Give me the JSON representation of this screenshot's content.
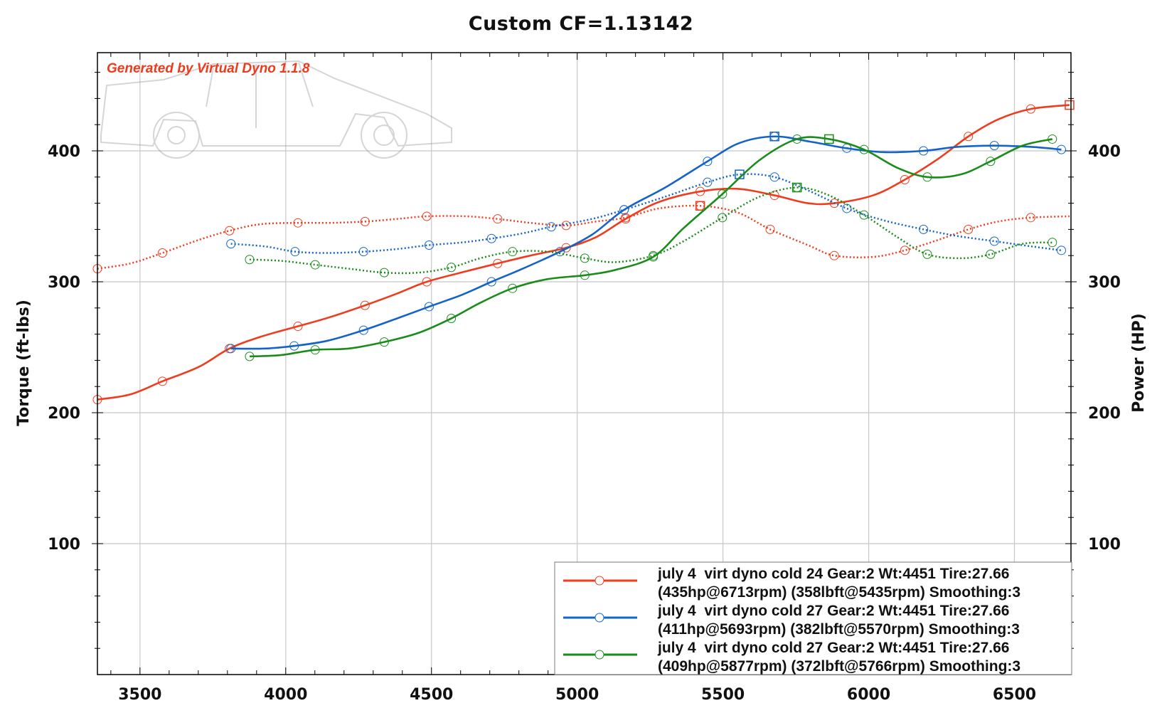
{
  "chart_data": {
    "type": "line",
    "title": "Custom CF=1.13142",
    "watermark": "Generated by Virtual Dyno 1.1.8",
    "xlabel": "",
    "ylabel": "Torque (ft-lbs)",
    "y2label": "Power (HP)",
    "xlim": [
      3354,
      6694
    ],
    "ylim": [
      0,
      475
    ],
    "xticks": [
      "3500",
      "4000",
      "4500",
      "5000",
      "5500",
      "6000",
      "6500"
    ],
    "yticks": [
      "100",
      "200",
      "300",
      "400"
    ],
    "grid": true,
    "legend_position": "bottom-right",
    "series": [
      {
        "name": "july 4  virt dyno cold 24 Gear:2 Wt:4451 Tire:27.66",
        "summary": "(435hp@6713rpm) (358lbft@5435rpm) Smoothing:3",
        "color": "#f03c1e",
        "power": [
          [
            3354,
            210
          ],
          [
            3467,
            214
          ],
          [
            3577,
            224
          ],
          [
            3702,
            235
          ],
          [
            3807,
            249
          ],
          [
            3914,
            258
          ],
          [
            4042,
            266
          ],
          [
            4152,
            273
          ],
          [
            4272,
            282
          ],
          [
            4382,
            291
          ],
          [
            4484,
            300
          ],
          [
            4619,
            308
          ],
          [
            4727,
            314
          ],
          [
            4839,
            320
          ],
          [
            4962,
            326
          ],
          [
            5064,
            334
          ],
          [
            5166,
            348
          ],
          [
            5281,
            361
          ],
          [
            5422,
            369
          ],
          [
            5549,
            371
          ],
          [
            5677,
            366
          ],
          [
            5792,
            360
          ],
          [
            5882,
            360
          ],
          [
            6015,
            366
          ],
          [
            6124,
            378
          ],
          [
            6239,
            394
          ],
          [
            6342,
            411
          ],
          [
            6444,
            424
          ],
          [
            6556,
            432
          ],
          [
            6689,
            435
          ]
        ],
        "torque": [
          [
            3354,
            310
          ],
          [
            3467,
            314
          ],
          [
            3577,
            322
          ],
          [
            3702,
            332
          ],
          [
            3807,
            339
          ],
          [
            3914,
            344
          ],
          [
            4042,
            345
          ],
          [
            4152,
            345
          ],
          [
            4272,
            346
          ],
          [
            4382,
            348
          ],
          [
            4484,
            350
          ],
          [
            4619,
            350
          ],
          [
            4727,
            348
          ],
          [
            4839,
            345
          ],
          [
            4962,
            343
          ],
          [
            5064,
            346
          ],
          [
            5166,
            349
          ],
          [
            5281,
            356
          ],
          [
            5422,
            358
          ],
          [
            5549,
            353
          ],
          [
            5662,
            340
          ],
          [
            5792,
            328
          ],
          [
            5882,
            320
          ],
          [
            6015,
            319
          ],
          [
            6124,
            324
          ],
          [
            6239,
            332
          ],
          [
            6342,
            340
          ],
          [
            6444,
            346
          ],
          [
            6556,
            349
          ],
          [
            6689,
            350
          ]
        ],
        "peak_power": [
          6689,
          435
        ],
        "peak_torque": [
          5422,
          358
        ]
      },
      {
        "name": "july 4  virt dyno cold 27 Gear:2 Wt:4451 Tire:27.66",
        "summary": "(411hp@5693rpm) (382lbft@5570rpm) Smoothing:3",
        "color": "#1464c8",
        "power": [
          [
            3812,
            249
          ],
          [
            3927,
            249
          ],
          [
            4029,
            251
          ],
          [
            4144,
            255
          ],
          [
            4267,
            263
          ],
          [
            4382,
            272
          ],
          [
            4492,
            281
          ],
          [
            4604,
            290
          ],
          [
            4706,
            300
          ],
          [
            4813,
            310
          ],
          [
            4941,
            323
          ],
          [
            5051,
            336
          ],
          [
            5161,
            355
          ],
          [
            5302,
            372
          ],
          [
            5447,
            392
          ],
          [
            5557,
            406
          ],
          [
            5677,
            411
          ],
          [
            5800,
            407
          ],
          [
            5925,
            402
          ],
          [
            6050,
            399
          ],
          [
            6188,
            400
          ],
          [
            6303,
            403
          ],
          [
            6431,
            404
          ],
          [
            6559,
            403
          ],
          [
            6661,
            401
          ]
        ],
        "torque": [
          [
            3812,
            329
          ],
          [
            3929,
            327
          ],
          [
            4032,
            323
          ],
          [
            4144,
            322
          ],
          [
            4267,
            323
          ],
          [
            4382,
            325
          ],
          [
            4492,
            328
          ],
          [
            4604,
            330
          ],
          [
            4706,
            333
          ],
          [
            4813,
            337
          ],
          [
            4911,
            342
          ],
          [
            5051,
            348
          ],
          [
            5161,
            355
          ],
          [
            5302,
            365
          ],
          [
            5447,
            376
          ],
          [
            5557,
            382
          ],
          [
            5677,
            380
          ],
          [
            5800,
            369
          ],
          [
            5925,
            356
          ],
          [
            6050,
            347
          ],
          [
            6188,
            340
          ],
          [
            6303,
            335
          ],
          [
            6431,
            331
          ],
          [
            6559,
            327
          ],
          [
            6661,
            324
          ]
        ],
        "peak_power": [
          5677,
          411
        ],
        "peak_torque": [
          5557,
          382
        ]
      },
      {
        "name": "july 4  virt dyno cold 27 Gear:2 Wt:4451 Tire:27.66",
        "summary": "(409hp@5877rpm) (372lbft@5766rpm) Smoothing:3",
        "color": "#1a8c1a",
        "power": [
          [
            3876,
            243
          ],
          [
            3983,
            244
          ],
          [
            4101,
            248
          ],
          [
            4216,
            249
          ],
          [
            4338,
            254
          ],
          [
            4456,
            261
          ],
          [
            4568,
            272
          ],
          [
            4668,
            284
          ],
          [
            4778,
            295
          ],
          [
            4898,
            302
          ],
          [
            5026,
            305
          ],
          [
            5130,
            309
          ],
          [
            5261,
            319
          ],
          [
            5365,
            341
          ],
          [
            5498,
            367
          ],
          [
            5626,
            393
          ],
          [
            5754,
            409
          ],
          [
            5864,
            409
          ],
          [
            5984,
            401
          ],
          [
            6099,
            387
          ],
          [
            6201,
            380
          ],
          [
            6316,
            382
          ],
          [
            6418,
            392
          ],
          [
            6528,
            404
          ],
          [
            6630,
            409
          ]
        ],
        "torque": [
          [
            3876,
            317
          ],
          [
            3983,
            316
          ],
          [
            4101,
            313
          ],
          [
            4216,
            310
          ],
          [
            4338,
            307
          ],
          [
            4456,
            307
          ],
          [
            4568,
            311
          ],
          [
            4668,
            318
          ],
          [
            4778,
            323
          ],
          [
            4898,
            323
          ],
          [
            5026,
            318
          ],
          [
            5130,
            315
          ],
          [
            5261,
            320
          ],
          [
            5365,
            331
          ],
          [
            5498,
            349
          ],
          [
            5626,
            365
          ],
          [
            5754,
            372
          ],
          [
            5864,
            366
          ],
          [
            5984,
            351
          ],
          [
            6099,
            334
          ],
          [
            6201,
            321
          ],
          [
            6316,
            318
          ],
          [
            6418,
            321
          ],
          [
            6528,
            329
          ],
          [
            6630,
            330
          ]
        ],
        "peak_power": [
          5864,
          409
        ],
        "peak_torque": [
          5754,
          372
        ]
      }
    ]
  }
}
